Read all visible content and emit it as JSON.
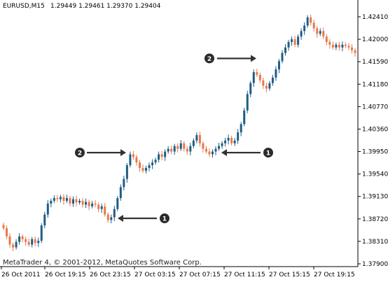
{
  "header": {
    "symbol": "EURUSD,M15",
    "quote": "1.29449 1.29461 1.29370 1.29404"
  },
  "footer": {
    "copyright": "MetaTrader 4, © 2001-2012, MetaQuotes Software Corp."
  },
  "colors": {
    "bull": "#1f5d86",
    "bear": "#e8794a",
    "axis": "#000000",
    "annotation": "#333333",
    "background": "#ffffff"
  },
  "chart_data": {
    "type": "candlestick",
    "title": "EURUSD,M15",
    "ylim": [
      1.279,
      1.2425
    ],
    "y_ticks": [
      "1.42410",
      "1.42000",
      "1.41590",
      "1.41180",
      "1.40770",
      "1.40360",
      "1.39950",
      "1.39540",
      "1.39130",
      "1.38720",
      "1.38310",
      "1.37900"
    ],
    "x_ticks": [
      "26 Oct 2011",
      "26 Oct 19:15",
      "26 Oct 23:15",
      "27 Oct 03:15",
      "27 Oct 07:15",
      "27 Oct 11:15",
      "27 Oct 15:15",
      "27 Oct 19:15"
    ],
    "grid": false,
    "series": [
      {
        "name": "EURUSD",
        "close": [
          1.3855,
          1.384,
          1.3825,
          1.382,
          1.383,
          1.384,
          1.3835,
          1.383,
          1.3825,
          1.3835,
          1.3828,
          1.3832,
          1.386,
          1.388,
          1.39,
          1.3905,
          1.391,
          1.3908,
          1.3912,
          1.3905,
          1.391,
          1.39,
          1.3908,
          1.3902,
          1.3905,
          1.3898,
          1.3903,
          1.3895,
          1.39,
          1.3898,
          1.389,
          1.3895,
          1.388,
          1.387,
          1.3875,
          1.389,
          1.391,
          1.393,
          1.3945,
          1.397,
          1.399,
          1.3985,
          1.3975,
          1.3965,
          1.396,
          1.3965,
          1.397,
          1.3975,
          1.398,
          1.399,
          1.3985,
          1.3995,
          1.4,
          1.3995,
          1.4005,
          1.4,
          1.401,
          1.4,
          1.3995,
          1.4005,
          1.4015,
          1.4025,
          1.401,
          1.4,
          1.3995,
          1.399,
          1.3995,
          1.4,
          1.4005,
          1.401,
          1.4015,
          1.402,
          1.401,
          1.4015,
          1.403,
          1.4045,
          1.407,
          1.41,
          1.412,
          1.414,
          1.4135,
          1.4125,
          1.4115,
          1.411,
          1.412,
          1.413,
          1.4145,
          1.416,
          1.4175,
          1.4185,
          1.4195,
          1.42,
          1.419,
          1.4205,
          1.4215,
          1.4225,
          1.424,
          1.423,
          1.422,
          1.421,
          1.4215,
          1.4205,
          1.4195,
          1.419,
          1.4185,
          1.419,
          1.4185,
          1.419,
          1.4188,
          1.4185,
          1.418,
          1.4175
        ],
        "note": "M15 candles; open = previous close; highs/lows estimated from wicks"
      }
    ],
    "annotations": [
      {
        "label": "1",
        "price": 1.3873,
        "direction": "left"
      },
      {
        "label": "2",
        "price": 1.3993,
        "direction": "right"
      },
      {
        "label": "1",
        "price": 1.3993,
        "direction": "left"
      },
      {
        "label": "2",
        "price": 1.4165,
        "direction": "right"
      }
    ]
  }
}
